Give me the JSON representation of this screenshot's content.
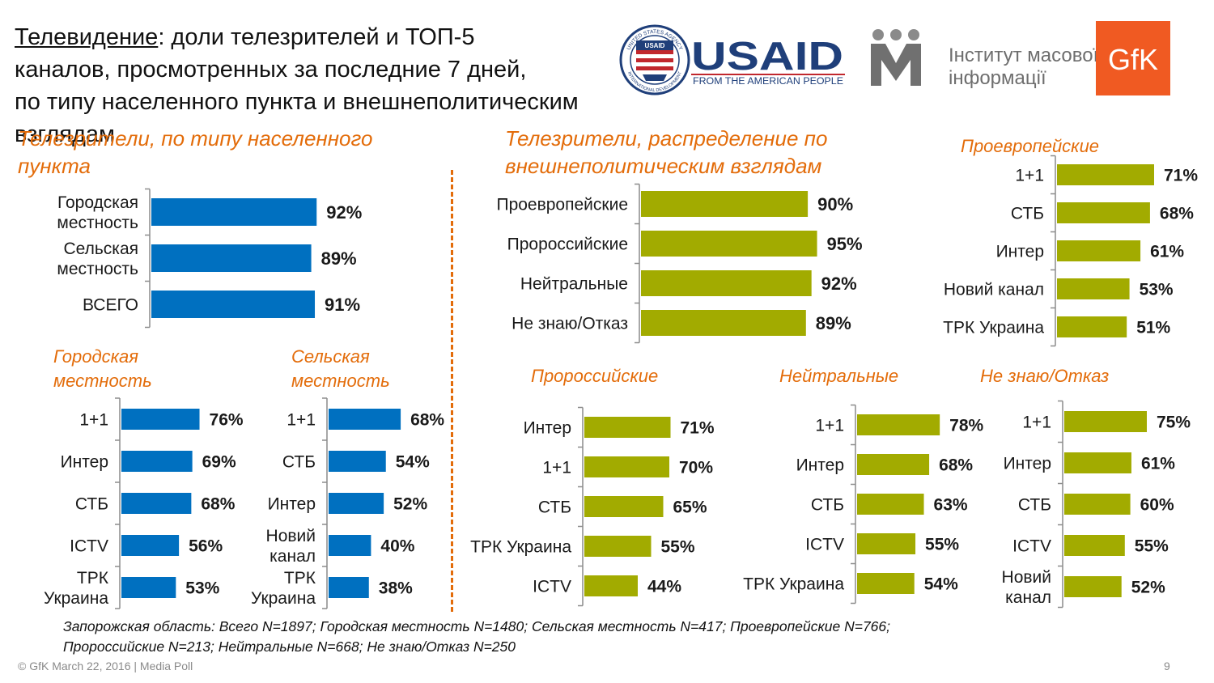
{
  "title": {
    "underlined": "Телевидение",
    "line1_rest": ": доли телезрителей и ТОП-5",
    "line2": "каналов, просмотренных за последние 7 дней,",
    "line3": "по типу населенного пункта и внешнеполитическим взглядам"
  },
  "logos": {
    "usaid_name": "USAID",
    "usaid_tagline": "FROM THE AMERICAN PEOPLE",
    "usaid_seal_top": "UNITED STATES AGENCY",
    "usaid_seal_bottom": "INTERNATIONAL DEVELOPMENT",
    "usaid_seal_center": "USAID",
    "imi_line1": "Інститут масової",
    "imi_line2": "інформації",
    "gfk": "GfK"
  },
  "sections": {
    "settlement": "Телезрители, по типу населенного пункта",
    "foreign_policy": "Телезрители, распределение по внешнеполитическим взглядам"
  },
  "colors": {
    "blue": "#0070c0",
    "olive": "#a2ab00",
    "accent": "#e36c0a",
    "axis": "#8c8c8c"
  },
  "chart_data": [
    {
      "id": "settlement_total",
      "type": "bar",
      "orientation": "horizontal",
      "title": "Телезрители, по типу населенного пункта",
      "categories": [
        [
          "Городская",
          "местность"
        ],
        [
          "Сельская",
          "местность"
        ],
        [
          "ВСЕГО"
        ]
      ],
      "values": [
        92,
        89,
        91
      ],
      "value_labels": [
        "92%",
        "89%",
        "91%"
      ],
      "xlim": [
        0,
        100
      ]
    },
    {
      "id": "foreign_policy_total",
      "type": "bar",
      "orientation": "horizontal",
      "title": "Телезрители, распределение по внешнеполитическим взглядам",
      "categories": [
        [
          "Проевропейские"
        ],
        [
          "Пророссийские"
        ],
        [
          "Нейтральные"
        ],
        [
          "Не знаю/Отказ"
        ]
      ],
      "values": [
        90,
        95,
        92,
        89
      ],
      "value_labels": [
        "90%",
        "95%",
        "92%",
        "89%"
      ],
      "xlim": [
        0,
        100
      ]
    },
    {
      "id": "pro_european",
      "type": "bar",
      "orientation": "horizontal",
      "title": "Проевропейские",
      "categories": [
        [
          "1+1"
        ],
        [
          "СТБ"
        ],
        [
          "Интер"
        ],
        [
          "Новий канал"
        ],
        [
          "ТРК Украина"
        ]
      ],
      "values": [
        71,
        68,
        61,
        53,
        51
      ],
      "value_labels": [
        "71%",
        "68%",
        "61%",
        "53%",
        "51%"
      ],
      "xlim": [
        0,
        100
      ]
    },
    {
      "id": "urban",
      "type": "bar",
      "orientation": "horizontal",
      "title": "Городская местность",
      "categories": [
        [
          "1+1"
        ],
        [
          "Интер"
        ],
        [
          "СТБ"
        ],
        [
          "ICTV"
        ],
        [
          "ТРК",
          "Украина"
        ]
      ],
      "values": [
        76,
        69,
        68,
        56,
        53
      ],
      "value_labels": [
        "76%",
        "69%",
        "68%",
        "56%",
        "53%"
      ],
      "xlim": [
        0,
        100
      ]
    },
    {
      "id": "rural",
      "type": "bar",
      "orientation": "horizontal",
      "title": "Сельская местность",
      "categories": [
        [
          "1+1"
        ],
        [
          "СТБ"
        ],
        [
          "Интер"
        ],
        [
          "Новий",
          "канал"
        ],
        [
          "ТРК",
          "Украина"
        ]
      ],
      "values": [
        68,
        54,
        52,
        40,
        38
      ],
      "value_labels": [
        "68%",
        "54%",
        "52%",
        "40%",
        "38%"
      ],
      "xlim": [
        0,
        100
      ]
    },
    {
      "id": "pro_russian",
      "type": "bar",
      "orientation": "horizontal",
      "title": "Пророссийские",
      "categories": [
        [
          "Интер"
        ],
        [
          "1+1"
        ],
        [
          "СТБ"
        ],
        [
          "ТРК Украина"
        ],
        [
          "ICTV"
        ]
      ],
      "values": [
        71,
        70,
        65,
        55,
        44
      ],
      "value_labels": [
        "71%",
        "70%",
        "65%",
        "55%",
        "44%"
      ],
      "xlim": [
        0,
        100
      ]
    },
    {
      "id": "neutral",
      "type": "bar",
      "orientation": "horizontal",
      "title": "Нейтральные",
      "categories": [
        [
          "1+1"
        ],
        [
          "Интер"
        ],
        [
          "СТБ"
        ],
        [
          "ICTV"
        ],
        [
          "ТРК Украина"
        ]
      ],
      "values": [
        78,
        68,
        63,
        55,
        54
      ],
      "value_labels": [
        "78%",
        "68%",
        "63%",
        "55%",
        "54%"
      ],
      "xlim": [
        0,
        100
      ]
    },
    {
      "id": "dont_know",
      "type": "bar",
      "orientation": "horizontal",
      "title": "Не знаю/Отказ",
      "categories": [
        [
          "1+1"
        ],
        [
          "Интер"
        ],
        [
          "СТБ"
        ],
        [
          "ICTV"
        ],
        [
          "Новий",
          "канал"
        ]
      ],
      "values": [
        75,
        61,
        60,
        55,
        52
      ],
      "value_labels": [
        "75%",
        "61%",
        "60%",
        "55%",
        "52%"
      ],
      "xlim": [
        0,
        100
      ]
    }
  ],
  "note": {
    "line1": "Запорожская область: Всего N=1897; Городская местность N=1480; Сельская местность N=417; Проевропейские N=766;",
    "line2": "Пророссийские N=213; Нейтральные N=668; Не знаю/Отказ N=250"
  },
  "footer": "© GfK March 22, 2016 | Media Poll",
  "page_number": "9"
}
